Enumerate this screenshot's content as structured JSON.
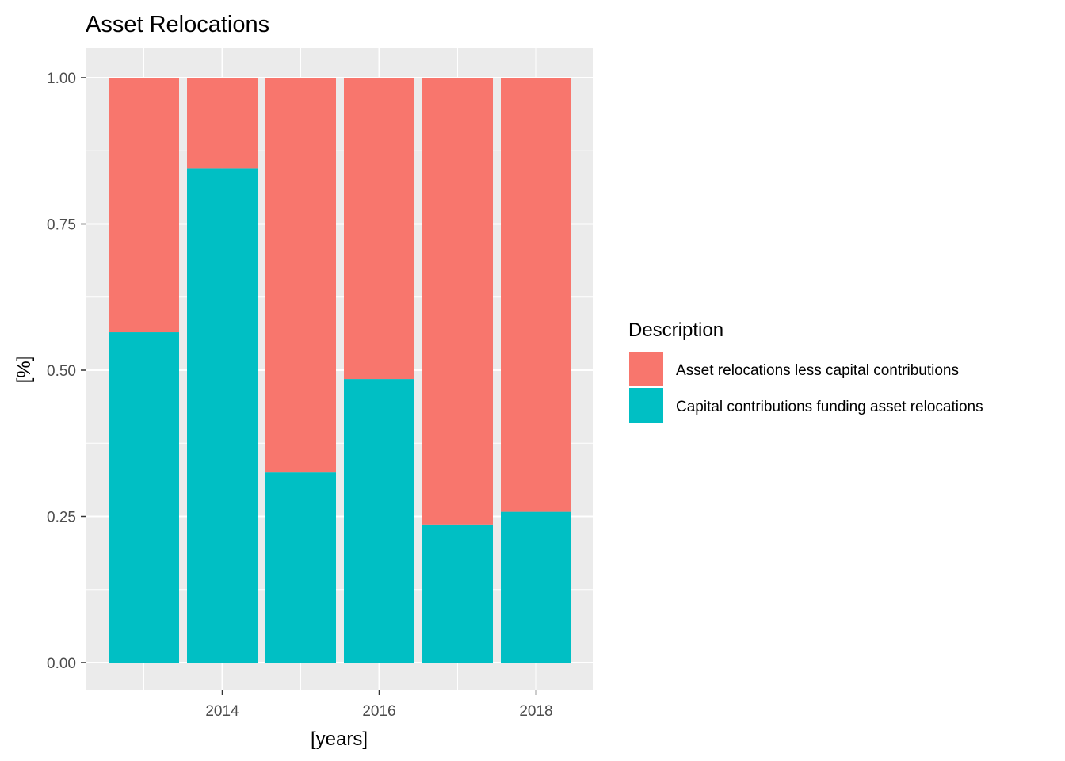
{
  "chart_data": {
    "type": "bar",
    "stacked": true,
    "title": "Asset Relocations",
    "xlabel": "[years]",
    "ylabel": "[%]",
    "categories": [
      "2013",
      "2014",
      "2015",
      "2016",
      "2017",
      "2018"
    ],
    "x_tick_labels": [
      "2014",
      "2016",
      "2018"
    ],
    "y_tick_labels": [
      "0.00",
      "0.25",
      "0.50",
      "0.75",
      "1.00"
    ],
    "ylim": [
      0,
      1
    ],
    "grid": true,
    "legend": {
      "title": "Description",
      "position": "right"
    },
    "series": [
      {
        "name": "Asset relocations less capital contributions",
        "color": "#F8766D",
        "values": [
          0.435,
          0.155,
          0.675,
          0.515,
          0.764,
          0.742
        ]
      },
      {
        "name": "Capital contributions funding asset relocations",
        "color": "#00BFC4",
        "values": [
          0.565,
          0.845,
          0.325,
          0.485,
          0.236,
          0.258
        ]
      }
    ],
    "panel_color": "#EBEBEB",
    "grid_color": "#FFFFFF"
  }
}
